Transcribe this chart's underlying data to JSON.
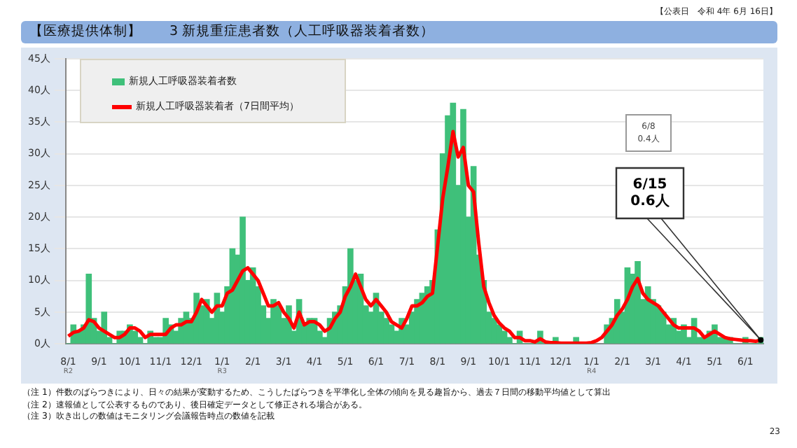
{
  "chart_data": {
    "type": "bar",
    "title": "【医療提供体制】　　3 新規重症患者数（人工呼吸器装着者数）",
    "categories": [
      "8/1",
      null,
      null,
      null,
      null,
      null,
      "9/1",
      null,
      null,
      null,
      null,
      null,
      "10/1",
      null,
      null,
      null,
      null,
      null,
      "11/1",
      null,
      null,
      null,
      null,
      null,
      "12/1",
      null,
      null,
      null,
      null,
      null,
      "1/1",
      null,
      null,
      null,
      null,
      null,
      "2/1",
      null,
      null,
      null,
      null,
      null,
      "3/1",
      null,
      null,
      null,
      null,
      null,
      "4/1",
      null,
      null,
      null,
      null,
      null,
      "5/1",
      null,
      null,
      null,
      null,
      null,
      "6/1",
      null,
      null,
      null,
      null,
      null,
      "7/1",
      null,
      null,
      null,
      null,
      null,
      "8/1",
      null,
      null,
      null,
      null,
      null,
      "9/1",
      null,
      null,
      null,
      null,
      null,
      "10/1",
      null,
      null,
      null,
      null,
      null,
      "11/1",
      null,
      null,
      null,
      null,
      null,
      "12/1",
      null,
      null,
      null,
      null,
      null,
      "1/1",
      null,
      null,
      null,
      null,
      null,
      "2/1",
      null,
      null,
      null,
      null,
      null,
      "3/1",
      null,
      null,
      null,
      null,
      null,
      "4/1",
      null,
      null,
      null,
      null,
      null,
      "5/1",
      null,
      null,
      null,
      null,
      null,
      "6/1",
      null,
      null,
      null
    ],
    "series": [
      {
        "name": "新規人工呼吸器装着者数",
        "color": "#3fc07a",
        "values": [
          0,
          3,
          2,
          3,
          11,
          4,
          2,
          5,
          1,
          0,
          2,
          2,
          3,
          2,
          1,
          0,
          2,
          1,
          1,
          4,
          3,
          2,
          4,
          5,
          4,
          8,
          6,
          7,
          4,
          8,
          5,
          9,
          15,
          14,
          20,
          10,
          12,
          9,
          6,
          4,
          7,
          6,
          4,
          6,
          2,
          7,
          3,
          4,
          4,
          2,
          1,
          4,
          5,
          6,
          9,
          15,
          10,
          11,
          6,
          5,
          8,
          5,
          4,
          3,
          2,
          4,
          3,
          5,
          7,
          8,
          9,
          10,
          18,
          30,
          36,
          38,
          25,
          37,
          20,
          28,
          14,
          10,
          5,
          4,
          3,
          2,
          1,
          0,
          2,
          0,
          0,
          0,
          2,
          0,
          0,
          1,
          0,
          0,
          0,
          1,
          0,
          0,
          0,
          null,
          null,
          3,
          4,
          7,
          5,
          12,
          11,
          13,
          7,
          9,
          7,
          6,
          5,
          3,
          4,
          2,
          3,
          1,
          4,
          1,
          1,
          2,
          3,
          1,
          1,
          1,
          0,
          null,
          1,
          0,
          0,
          1
        ]
      },
      {
        "name": "新規人工呼吸器装着者（7日間平均）",
        "type": "line",
        "color": "#ff0000",
        "values": [
          1.2,
          1.8,
          2,
          2.5,
          3.8,
          3.5,
          2.5,
          2,
          1.5,
          1,
          1,
          1.5,
          2.5,
          2.5,
          2,
          1,
          1.5,
          1.5,
          1.5,
          1.5,
          2.5,
          3,
          3,
          3.5,
          3.5,
          5,
          7,
          6,
          5,
          6,
          6,
          8,
          8.5,
          10,
          11.5,
          12,
          11,
          10,
          8,
          6,
          6,
          6.5,
          5,
          4,
          2.5,
          5,
          3,
          3.5,
          3.5,
          3,
          2,
          2.5,
          4,
          5,
          7.5,
          9,
          11,
          9,
          7,
          6,
          7,
          6,
          5,
          3.5,
          3,
          2.5,
          4,
          6,
          6,
          6.5,
          7.5,
          8,
          15.5,
          23,
          28,
          33.5,
          29.5,
          31,
          25,
          24,
          16,
          9,
          6.5,
          4.5,
          3.3,
          2.5,
          2,
          1,
          1,
          0.5,
          0.5,
          0.3,
          0.8,
          0.3,
          0.2,
          0.2,
          0.1,
          0.1,
          0.1,
          0.1,
          0.1,
          0.1,
          0.2,
          0.5,
          1,
          2,
          3,
          4.5,
          5.5,
          7,
          9,
          10.3,
          8,
          7,
          6.5,
          6,
          5,
          4,
          3,
          2.5,
          2.5,
          2.5,
          2.5,
          2,
          1,
          1.5,
          2,
          1.5,
          1,
          0.8,
          0.7,
          0.6,
          0.5,
          0.5,
          0.4,
          0.6
        ]
      }
    ],
    "ylim": [
      0,
      45
    ],
    "yticks": [
      {
        "value": 0,
        "label": "0人"
      },
      {
        "value": 5,
        "label": "5人"
      },
      {
        "value": 10,
        "label": "10人"
      },
      {
        "value": 15,
        "label": "15人"
      },
      {
        "value": 20,
        "label": "20人"
      },
      {
        "value": 25,
        "label": "25人"
      },
      {
        "value": 30,
        "label": "30人"
      },
      {
        "value": 35,
        "label": "35人"
      },
      {
        "value": 40,
        "label": "40人"
      },
      {
        "value": 45,
        "label": "45人"
      }
    ],
    "grid": "y",
    "legend": "top left",
    "annotations": [
      "【公表日　令和 4年 6月 16日】",
      "R2",
      "R3",
      "R4",
      "6/8 0.4人",
      "6/15 0.6人",
      "（注 1）件数のばらつきにより、日々の結果が変動するため、こうしたばらつきを平準化し全体の傾向を見る趣旨から、過去７日間の移動平均値として算出",
      "（注 2）速報値として公表するものであり、後日確定データとして修正される場合がある。",
      "（注 3）吹き出しの数値はモニタリング会議報告時点の数値を記載",
      "23"
    ]
  }
}
